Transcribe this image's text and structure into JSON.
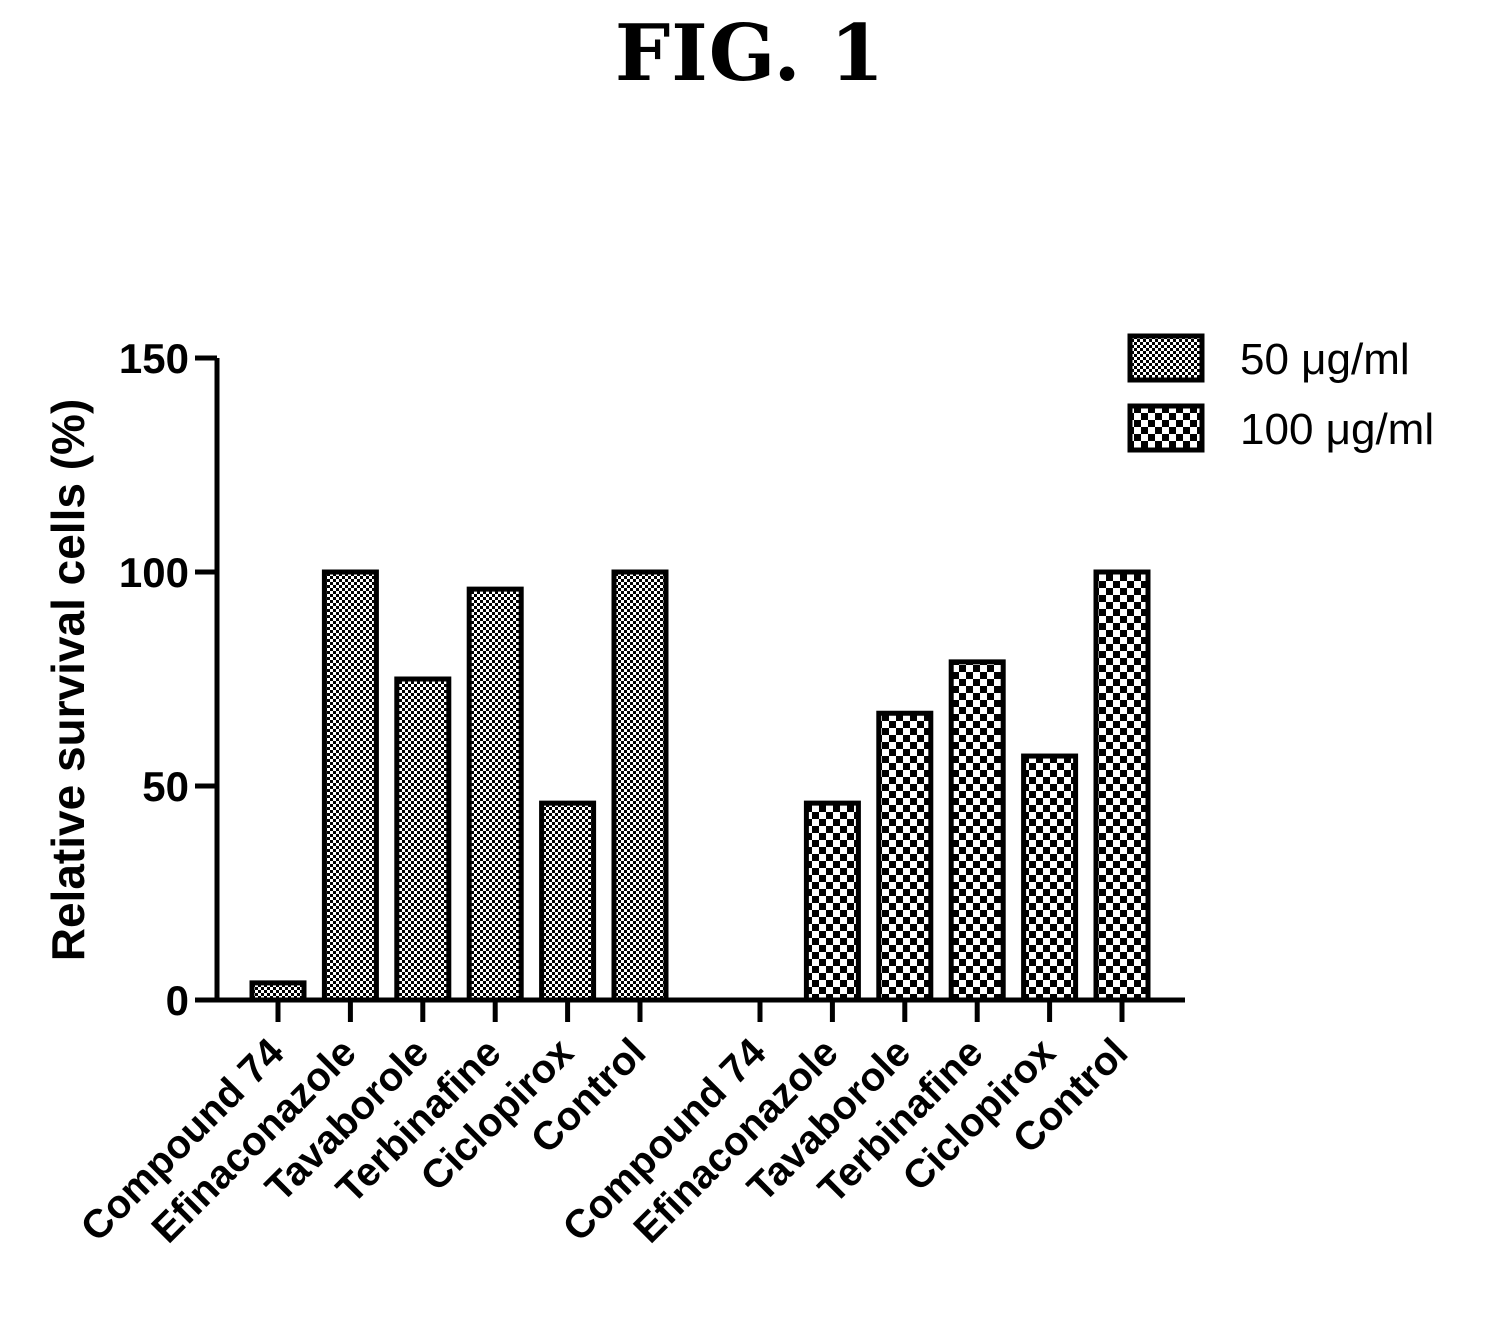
{
  "figure_label": "FIG. 1",
  "chart_data": {
    "type": "bar",
    "ylabel": "Relative survival cells (%)",
    "xlabel": "",
    "ylim": [
      0,
      150
    ],
    "yticks": [
      0,
      50,
      100,
      150
    ],
    "grid": false,
    "legend_position": "top-right",
    "categories": [
      "Compound 74",
      "Efinaconazole",
      "Tavaborole",
      "Terbinafine",
      "Ciclopirox",
      "Control"
    ],
    "series": [
      {
        "name": "50 μg/ml",
        "pattern": "fine-crosshatch",
        "values": [
          4,
          100,
          75,
          96,
          46,
          100
        ]
      },
      {
        "name": "100 μg/ml",
        "pattern": "checkerboard",
        "values": [
          0,
          46,
          67,
          79,
          57,
          100
        ]
      }
    ]
  }
}
